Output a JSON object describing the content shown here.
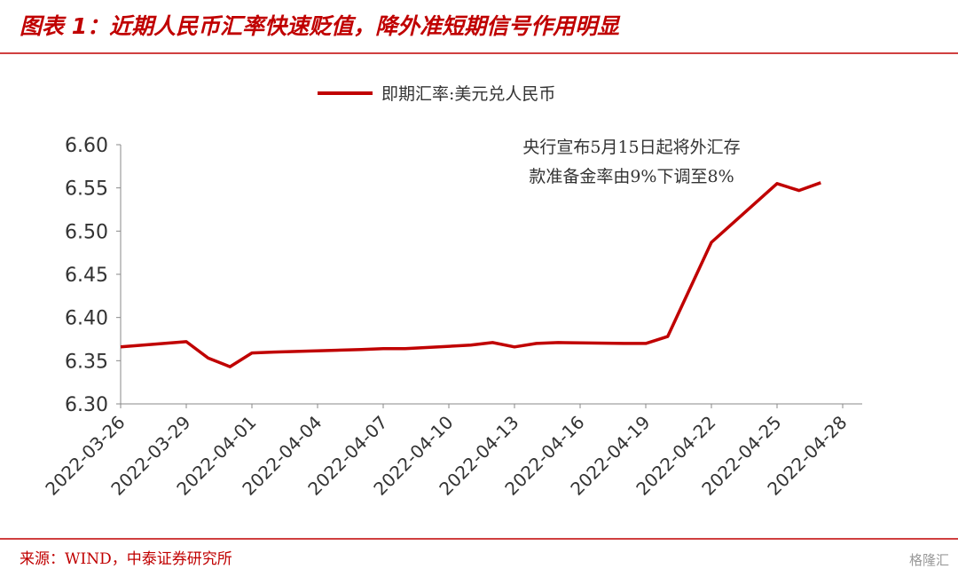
{
  "chart_data": {
    "type": "line",
    "title": "图表 1：近期人民币汇率快速贬值，降外准短期信号作用明显",
    "x": [
      "2022-03-26",
      "2022-03-29",
      "2022-03-30",
      "2022-03-31",
      "2022-04-01",
      "2022-04-02",
      "2022-04-06",
      "2022-04-07",
      "2022-04-08",
      "2022-04-11",
      "2022-04-12",
      "2022-04-13",
      "2022-04-14",
      "2022-04-15",
      "2022-04-18",
      "2022-04-19",
      "2022-04-20",
      "2022-04-22",
      "2022-04-25",
      "2022-04-26",
      "2022-04-27"
    ],
    "series": [
      {
        "name": "即期汇率:美元兑人民币",
        "color": "#c00000",
        "values": [
          6.366,
          6.372,
          6.353,
          6.343,
          6.359,
          6.36,
          6.363,
          6.364,
          6.364,
          6.368,
          6.371,
          6.366,
          6.37,
          6.371,
          6.37,
          6.37,
          6.378,
          6.487,
          6.555,
          6.547,
          6.556
        ]
      }
    ],
    "xlim": [
      "2022-03-26",
      "2022-04-28"
    ],
    "xticks": [
      "2022-03-26",
      "2022-03-29",
      "2022-04-01",
      "2022-04-04",
      "2022-04-07",
      "2022-04-10",
      "2022-04-13",
      "2022-04-16",
      "2022-04-19",
      "2022-04-22",
      "2022-04-25",
      "2022-04-28"
    ],
    "ylim": [
      6.3,
      6.6
    ],
    "yticks": [
      {
        "value": 6.3,
        "label": "6.30"
      },
      6.35,
      {
        "value": 6.4,
        "label": "6.40"
      },
      6.45,
      {
        "value": 6.5,
        "label": "6.50"
      },
      6.55,
      {
        "value": 6.6,
        "label": "6.60"
      }
    ],
    "annotation": [
      "央行宣布5月15日起将外汇存",
      "款准备金率由9%下调至8%"
    ],
    "source": "来源：WIND，中泰证券研究所",
    "watermark": "格隆汇"
  }
}
